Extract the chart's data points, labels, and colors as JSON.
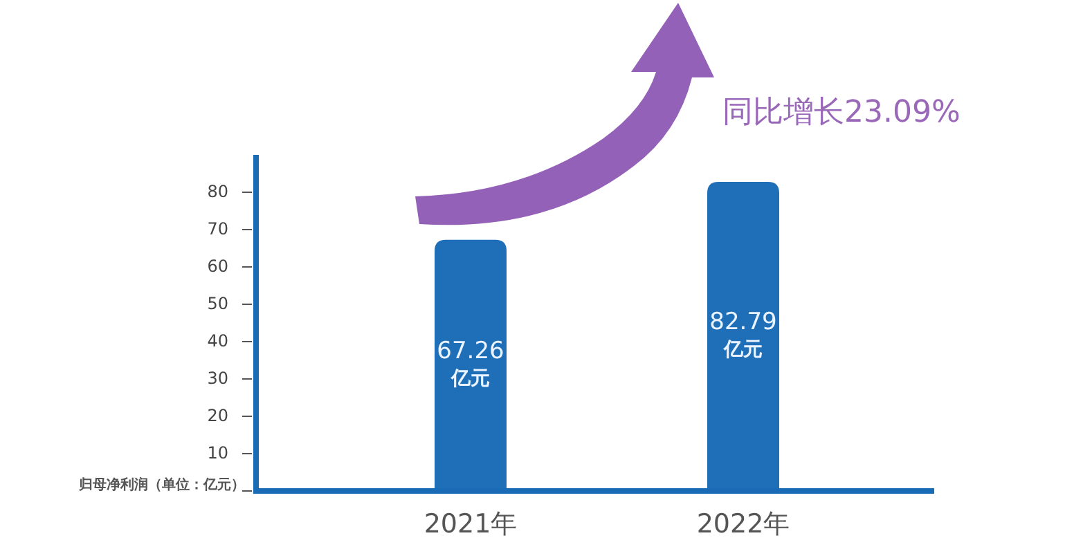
{
  "chart_data": {
    "type": "bar",
    "categories": [
      "2021年",
      "2022年"
    ],
    "values": [
      67.26,
      82.79
    ],
    "color": "#1f6fb8",
    "value_labels": [
      "67.26\n亿元",
      "82.79\n亿元"
    ],
    "ylabel": "归母净利润（单位：亿元）",
    "annotations": [
      "同比增长23.09%"
    ],
    "ylim": [
      0,
      90
    ],
    "yticks": [
      {
        "value": 0,
        "label": null
      },
      10,
      20,
      30,
      40,
      50,
      60,
      70,
      80
    ],
    "grid": false
  }
}
